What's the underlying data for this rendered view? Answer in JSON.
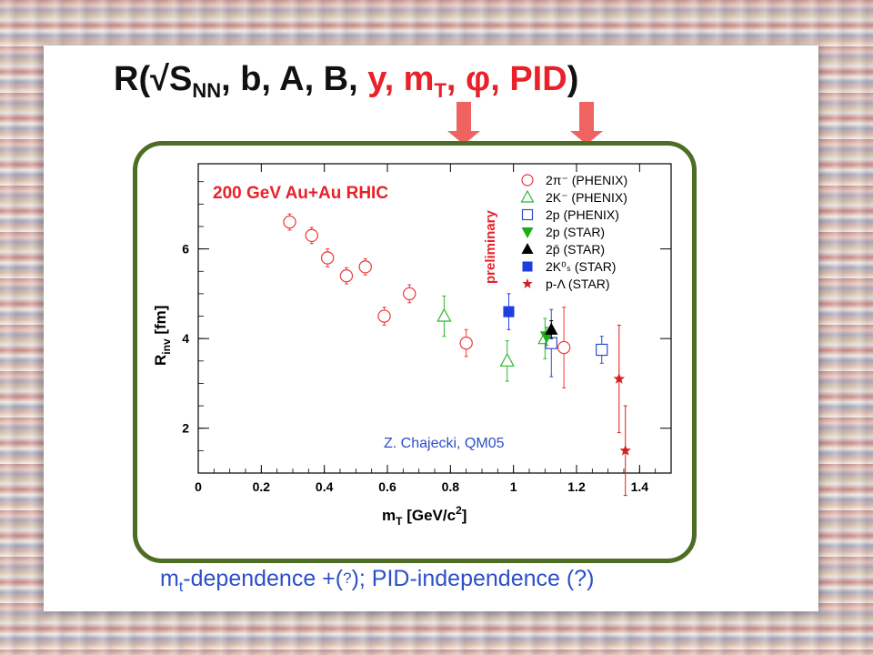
{
  "slide": {
    "title_prefix": "R(√S",
    "title_sub": "NN",
    "title_plain": ", b, A, B, ",
    "title_red1": "y, m",
    "title_red1_sub": "T",
    "title_red2": ", φ, PID",
    "title_suffix": ")",
    "caption_m": "m",
    "caption_sub": "t",
    "caption_mid": "-dependence +(",
    "caption_q": "?",
    "caption_end": "); PID-independence (?)",
    "colors": {
      "frame": "#4d6d24",
      "arrow": "#ef6461",
      "title_red": "#e8212a",
      "caption": "#2c4fc9"
    }
  },
  "chart_data": {
    "type": "scatter",
    "title": "200 GeV Au+Au RHIC",
    "stamp": "preliminary",
    "credit": "Z. Chajecki, QM05",
    "xlabel_main": "m",
    "xlabel_sub": "T",
    "xlabel_rest": " [GeV/c",
    "xlabel_sup": "2",
    "xlabel_close": "]",
    "ylabel_main": "R",
    "ylabel_sub": "inv",
    "ylabel_rest": " [fm]",
    "xlim": [
      0,
      1.5
    ],
    "ylim": [
      1,
      7.9
    ],
    "xticks": [
      "0",
      "0.2",
      "0.4",
      "0.6",
      "0.8",
      "1",
      "1.2",
      "1.4"
    ],
    "yticks": [
      "2",
      "4",
      "6"
    ],
    "legend_position": "top-right",
    "series": [
      {
        "name": "2π⁻ (PHENIX)",
        "marker": "circle-open",
        "color": "#e83a3a",
        "points": [
          [
            0.29,
            6.6,
            0.18
          ],
          [
            0.36,
            6.3,
            0.18
          ],
          [
            0.41,
            5.8,
            0.2
          ],
          [
            0.47,
            5.4,
            0.18
          ],
          [
            0.53,
            5.6,
            0.18
          ],
          [
            0.59,
            4.5,
            0.2
          ],
          [
            0.67,
            5.0,
            0.2
          ],
          [
            0.85,
            3.9,
            0.3
          ],
          [
            1.16,
            3.8,
            0.9
          ]
        ]
      },
      {
        "name": "2K⁻ (PHENIX)",
        "marker": "triangle-open",
        "color": "#2fb82f",
        "points": [
          [
            0.78,
            4.5,
            0.45
          ],
          [
            0.98,
            3.5,
            0.45
          ],
          [
            1.1,
            4.0,
            0.45
          ]
        ]
      },
      {
        "name": "2p (PHENIX)",
        "marker": "square-open",
        "color": "#2b4fc7",
        "points": [
          [
            1.12,
            3.9,
            0.75
          ],
          [
            1.28,
            3.75,
            0.3
          ]
        ]
      },
      {
        "name": "2p (STAR)",
        "marker": "triangle-down-filled",
        "color": "#17b017",
        "points": [
          [
            1.105,
            4.05,
            0.2
          ]
        ]
      },
      {
        "name": "2p̄ (STAR)",
        "marker": "triangle-filled",
        "color": "#000000",
        "points": [
          [
            1.12,
            4.2,
            0.2
          ]
        ]
      },
      {
        "name": "2K⁰ₛ (STAR)",
        "marker": "square-filled",
        "color": "#1d3fe0",
        "points": [
          [
            0.985,
            4.6,
            0.4
          ]
        ]
      },
      {
        "name": "p-Λ (STAR)",
        "marker": "star",
        "color": "#d42020",
        "points": [
          [
            1.335,
            3.1,
            1.2
          ],
          [
            1.355,
            1.5,
            1.0
          ]
        ]
      }
    ]
  }
}
